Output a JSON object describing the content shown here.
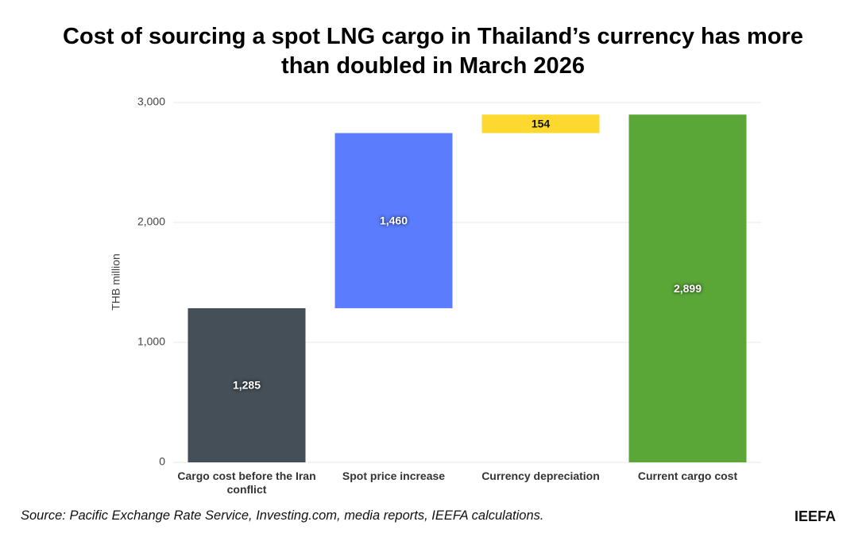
{
  "chart_data": {
    "type": "waterfall",
    "title": "Cost of sourcing a spot LNG cargo in Thailand’s currency has more than doubled in March 2026",
    "y_label": "THB million",
    "categories": [
      "Cargo cost before the Iran conflict",
      "Spot price increase",
      "Currency depreciation",
      "Current cargo cost"
    ],
    "values": [
      1285,
      1460,
      154,
      2899
    ],
    "value_labels": [
      "1,285",
      "1,460",
      "154",
      "2,899"
    ],
    "colors": [
      "#454f57",
      "#5b7cfd",
      "#fdd82e",
      "#5aa637"
    ],
    "ylim": [
      0,
      3000
    ],
    "yticks": [
      0,
      {
        "value": 1000,
        "label": "1,000"
      },
      {
        "value": 2000,
        "label": "2,000"
      },
      {
        "value": 3000,
        "label": "3,000"
      }
    ],
    "grid": true,
    "source": "Source: Pacific Exchange Rate Service, Investing.com, media reports, IEEFA calculations.",
    "brand": "IEEFA"
  }
}
